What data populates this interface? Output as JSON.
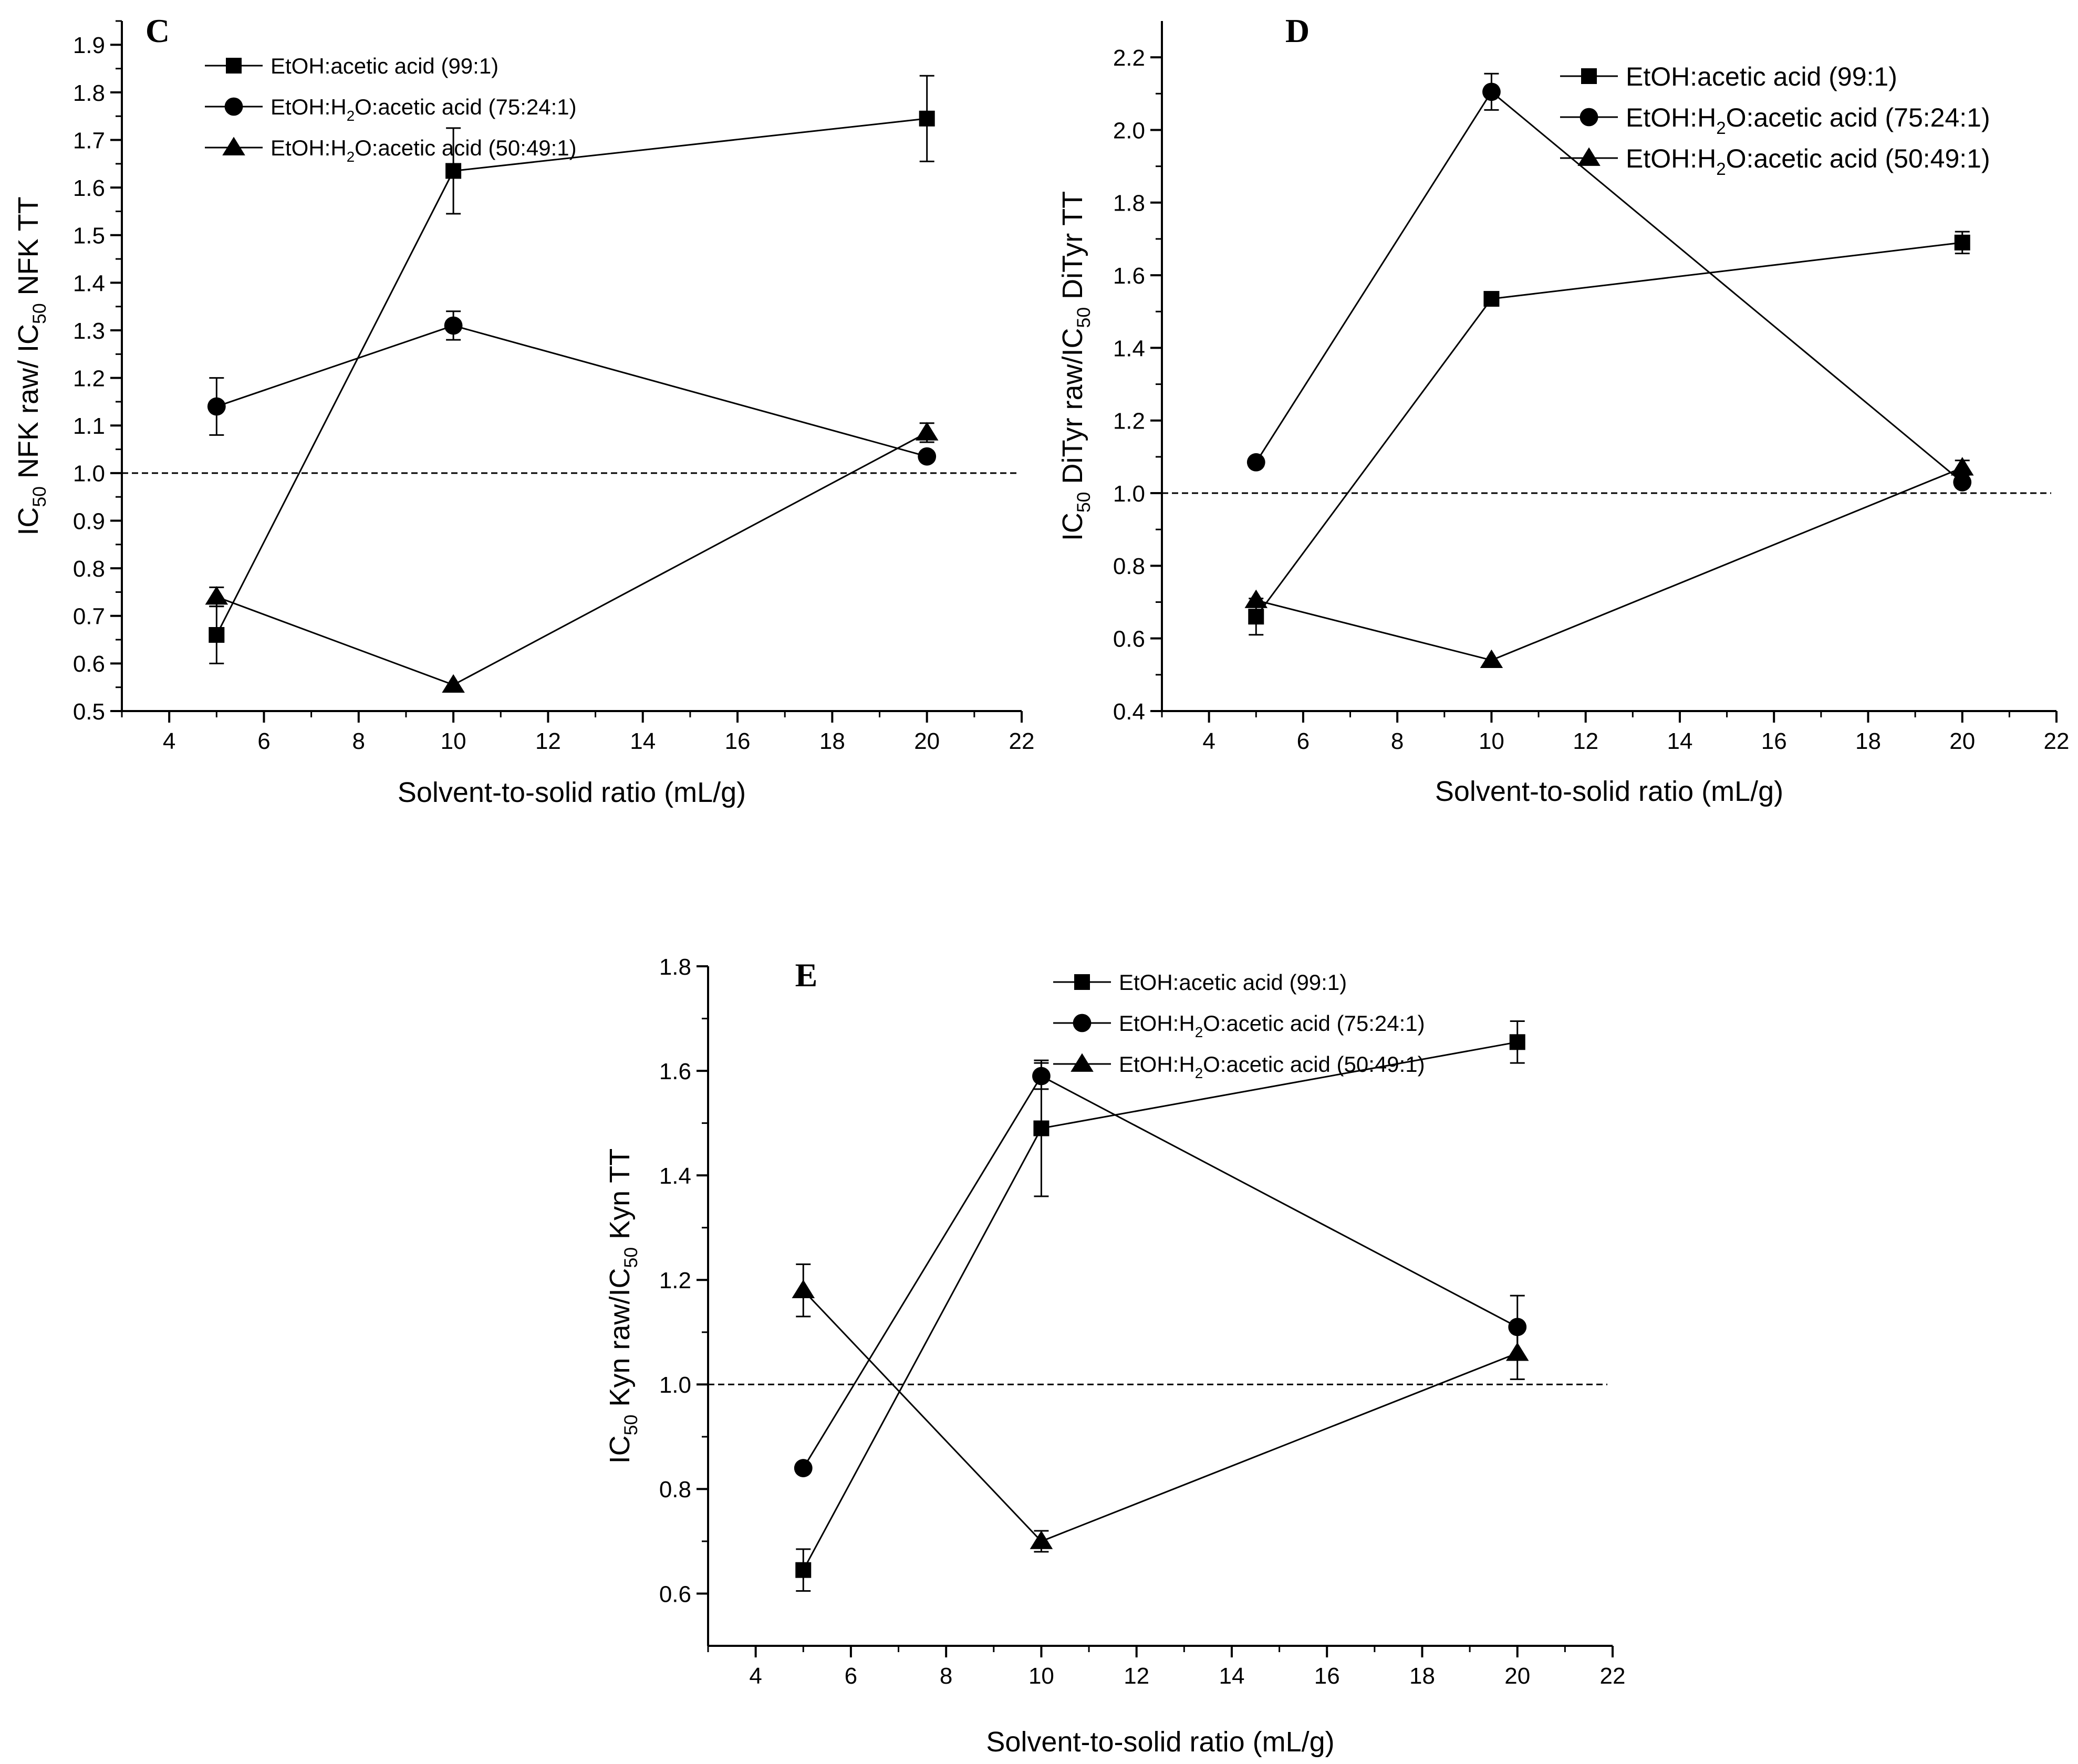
{
  "chart_data": [
    {
      "type": "line",
      "panel": "C",
      "xlabel": "Solvent-to-solid ratio (mL/g)",
      "ylabel": "IC50 NFK raw/ IC50 NFK TT",
      "ylabel_parts": [
        "IC",
        "50",
        " NFK raw/ IC",
        "50",
        " NFK TT"
      ],
      "xlim": [
        3,
        22
      ],
      "ylim": [
        0.5,
        1.95
      ],
      "xticks": [
        4,
        6,
        8,
        10,
        12,
        14,
        16,
        18,
        20,
        22
      ],
      "xtick_labels": [
        "4",
        "6",
        "8",
        "10",
        "12",
        "14",
        "16",
        "18",
        "20",
        "22"
      ],
      "yticks": [
        0.5,
        0.6,
        0.7,
        0.8,
        0.9,
        1.0,
        1.1,
        1.2,
        1.3,
        1.4,
        1.5,
        1.6,
        1.7,
        1.8,
        1.9
      ],
      "ytick_labels": [
        "0.5",
        "0.6",
        "0.7",
        "0.8",
        "0.9",
        "1.0",
        "1.1",
        "1.2",
        "1.3",
        "1.4",
        "1.5",
        "1.6",
        "1.7",
        "1.8",
        "1.9"
      ],
      "reference_line": 1.0,
      "legend_position": "top-left",
      "legend_entries": [
        [
          "EtOH:acetic acid (99:1)"
        ],
        [
          "EtOH:H",
          "2",
          "O:acetic acid (75:24:1)"
        ],
        [
          "EtOH:H",
          "2",
          "O:acetic acid (50:49:1)"
        ]
      ],
      "series": [
        {
          "name": "EtOH:acetic acid (99:1)",
          "marker": "square",
          "x": [
            5,
            10,
            20
          ],
          "y": [
            0.66,
            1.635,
            1.745
          ],
          "err": [
            0.06,
            0.09,
            0.09
          ]
        },
        {
          "name": "EtOH:H2O:acetic acid (75:24:1)",
          "marker": "circle",
          "x": [
            5,
            10,
            20
          ],
          "y": [
            1.14,
            1.31,
            1.035
          ],
          "err": [
            0.06,
            0.03,
            0.0
          ]
        },
        {
          "name": "EtOH:H2O:acetic acid (50:49:1)",
          "marker": "triangle",
          "x": [
            5,
            10,
            20
          ],
          "y": [
            0.74,
            0.555,
            1.085
          ],
          "err": [
            0.02,
            0.0,
            0.02
          ]
        }
      ]
    },
    {
      "type": "line",
      "panel": "D",
      "xlabel": "Solvent-to-solid ratio (mL/g)",
      "ylabel": "IC50 DiTyr raw/IC50 DiTyr TT",
      "ylabel_parts": [
        "IC",
        "50",
        " DiTyr raw/IC",
        "50",
        " DiTyr  TT"
      ],
      "xlim": [
        3,
        22
      ],
      "ylim": [
        0.4,
        2.3
      ],
      "xticks": [
        4,
        6,
        8,
        10,
        12,
        14,
        16,
        18,
        20,
        22
      ],
      "xtick_labels": [
        "4",
        "6",
        "8",
        "10",
        "12",
        "14",
        "16",
        "18",
        "20",
        "22"
      ],
      "yticks": [
        0.4,
        0.6,
        0.8,
        1.0,
        1.2,
        1.4,
        1.6,
        1.8,
        2.0,
        2.2
      ],
      "ytick_labels": [
        "0.4",
        "0.6",
        "0.8",
        "1.0",
        "1.2",
        "1.4",
        "1.6",
        "1.8",
        "2.0",
        "2.2"
      ],
      "reference_line": 1.0,
      "legend_position": "top-right",
      "legend_entries": [
        [
          "EtOH:acetic acid (99:1)"
        ],
        [
          "EtOH:H",
          "2",
          "O:acetic acid (75:24:1)"
        ],
        [
          "EtOH:H",
          "2",
          "O:acetic acid (50:49:1)"
        ]
      ],
      "series": [
        {
          "name": "EtOH:acetic acid (99:1)",
          "marker": "square",
          "x": [
            5,
            10,
            20
          ],
          "y": [
            0.66,
            1.535,
            1.69
          ],
          "err": [
            0.05,
            0.0,
            0.03
          ]
        },
        {
          "name": "EtOH:H2O:acetic acid (75:24:1)",
          "marker": "circle",
          "x": [
            5,
            10,
            20
          ],
          "y": [
            1.085,
            2.105,
            1.03
          ],
          "err": [
            0.0,
            0.05,
            0.0
          ]
        },
        {
          "name": "EtOH:H2O:acetic acid (50:49:1)",
          "marker": "triangle",
          "x": [
            5,
            10,
            20
          ],
          "y": [
            0.705,
            0.54,
            1.07
          ],
          "err": [
            0.0,
            0.0,
            0.02
          ]
        }
      ]
    },
    {
      "type": "line",
      "panel": "E",
      "xlabel": "Solvent-to-solid ratio (mL/g)",
      "ylabel": "IC50 Kyn raw/IC50 Kyn TT",
      "ylabel_parts": [
        "IC",
        "50",
        " Kyn raw/IC",
        "50",
        " Kyn TT"
      ],
      "xlim": [
        3,
        22
      ],
      "ylim": [
        0.5,
        1.8
      ],
      "xticks": [
        4,
        6,
        8,
        10,
        12,
        14,
        16,
        18,
        20,
        22
      ],
      "xtick_labels": [
        "4",
        "6",
        "8",
        "10",
        "12",
        "14",
        "16",
        "18",
        "20",
        "22"
      ],
      "yticks": [
        0.6,
        0.8,
        1.0,
        1.2,
        1.4,
        1.6,
        1.8
      ],
      "ytick_labels": [
        "0.6",
        "0.8",
        "1.0",
        "1.2",
        "1.4",
        "1.6",
        "1.8"
      ],
      "reference_line": 1.0,
      "legend_position": "top-right",
      "legend_entries": [
        [
          "EtOH:acetic acid (99:1)"
        ],
        [
          "EtOH:H",
          "2",
          "O:acetic acid (75:24:1)"
        ],
        [
          "EtOH:H",
          "2",
          "O:acetic acid (50:49:1)"
        ]
      ],
      "series": [
        {
          "name": "EtOH:acetic acid (99:1)",
          "marker": "square",
          "x": [
            5,
            10,
            20
          ],
          "y": [
            0.645,
            1.49,
            1.655
          ],
          "err": [
            0.04,
            0.13,
            0.04
          ]
        },
        {
          "name": "EtOH:H2O:acetic acid (75:24:1)",
          "marker": "circle",
          "x": [
            5,
            10,
            20
          ],
          "y": [
            0.84,
            1.59,
            1.11
          ],
          "err": [
            0.0,
            0.025,
            0.06
          ]
        },
        {
          "name": "EtOH:H2O:acetic acid (50:49:1)",
          "marker": "triangle",
          "x": [
            5,
            10,
            20
          ],
          "y": [
            1.18,
            0.7,
            1.06
          ],
          "err": [
            0.05,
            0.02,
            0.05
          ]
        }
      ]
    }
  ]
}
